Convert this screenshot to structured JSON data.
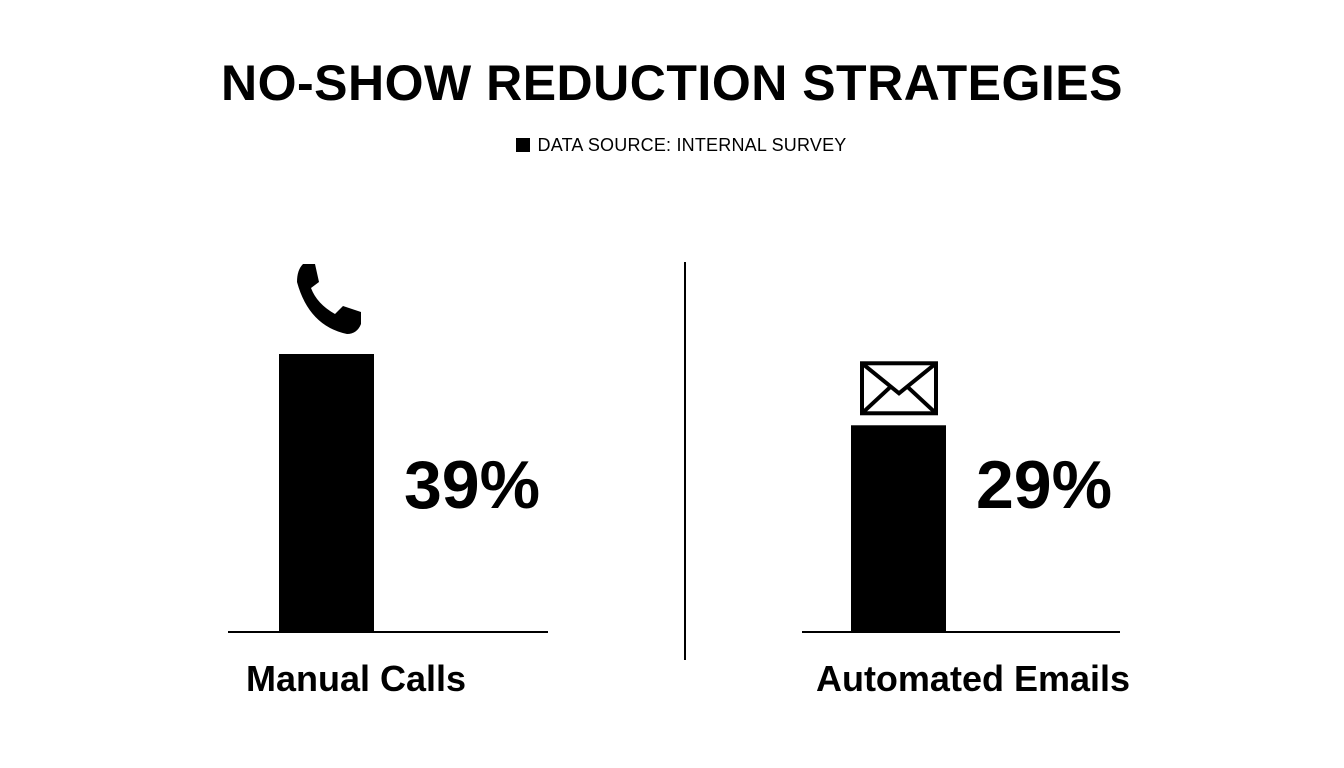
{
  "chart_data": {
    "type": "bar",
    "title": "NO-SHOW REDUCTION STRATEGIES",
    "legend": "DATA SOURCE: INTERNAL SURVEY",
    "legend_placement": "top-center",
    "categories": [
      "Manual Calls",
      "Automated Emails"
    ],
    "values": [
      39,
      29
    ],
    "value_labels": [
      "39%",
      "29%"
    ],
    "icons": [
      "phone-icon",
      "envelope-icon"
    ],
    "unit": "%",
    "xlabel": "",
    "ylabel": "",
    "grid": false,
    "bar_color": "#000000"
  }
}
